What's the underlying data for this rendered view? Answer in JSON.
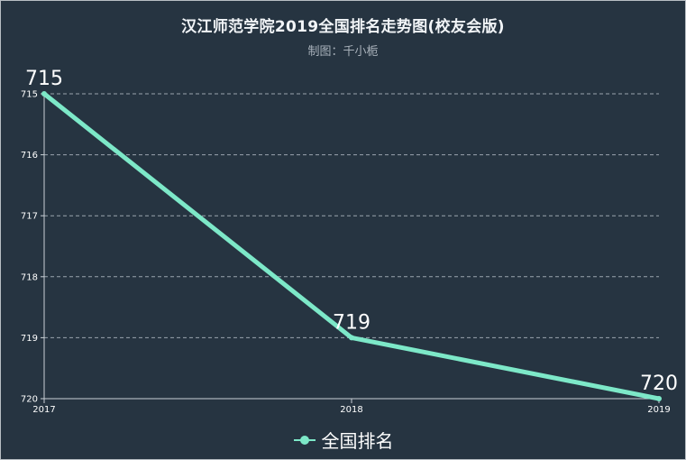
{
  "title": "汉江师范学院2019全国排名走势图(校友会版)",
  "subtitle": "制图：千小栀",
  "colors": {
    "background": "#263441",
    "line": "#7de8c8",
    "grid": "#9aa3ad",
    "axis": "#c9d0d6",
    "text": "#ffffff"
  },
  "chart_data": {
    "type": "line",
    "title": "汉江师范学院2019全国排名走势图(校友会版)",
    "subtitle": "制图：千小栀",
    "x": [
      "2017",
      "2018",
      "2019"
    ],
    "y_ticks": [
      "715",
      "716",
      "717",
      "718",
      "719",
      "720"
    ],
    "ylim": [
      715,
      720
    ],
    "y_inverted": true,
    "grid": true,
    "legend_position": "bottom",
    "series": [
      {
        "name": "全国排名",
        "values": [
          715,
          719,
          720
        ],
        "labels": [
          "715",
          "719",
          "720"
        ]
      }
    ]
  }
}
